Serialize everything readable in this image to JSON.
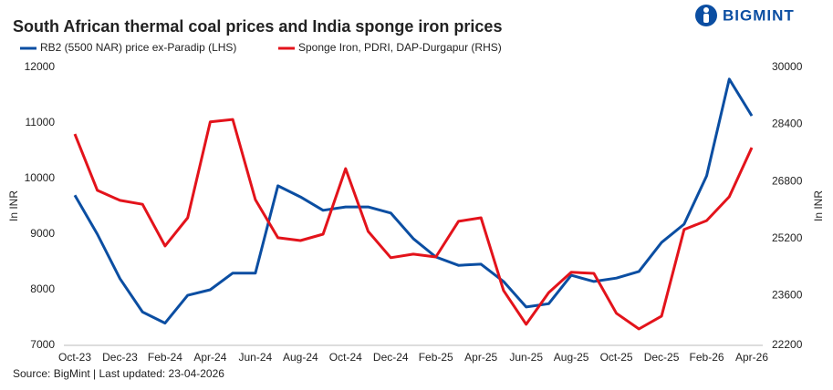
{
  "brand": "BIGMINT",
  "chart_data": {
    "type": "line",
    "title": "South African thermal coal prices and India sponge iron prices",
    "source": "Source: BigMint | Last updated: 23-04-2026",
    "ylabel": "In INR",
    "y2label": "In INR",
    "categories": [
      "Oct-23",
      null,
      "Dec-23",
      null,
      "Feb-24",
      null,
      "Apr-24",
      null,
      "Jun-24",
      null,
      "Aug-24",
      null,
      "Oct-24",
      null,
      "Dec-24",
      null,
      "Feb-25",
      null,
      "Apr-25",
      null,
      "Jun-25",
      null,
      "Aug-25",
      null,
      "Oct-25",
      null,
      "Dec-25",
      null,
      "Feb-26",
      null,
      "Apr-26"
    ],
    "series": [
      {
        "name": "RB2 (5500 NAR) price ex-Paradip (LHS)",
        "color": "#0b4ea2",
        "values": [
          9700,
          9000,
          8200,
          7600,
          7400,
          7900,
          8000,
          8300,
          8300,
          9870,
          9670,
          9430,
          9490,
          9490,
          9380,
          8920,
          8590,
          8440,
          8460,
          8150,
          7690,
          7750,
          8260,
          8150,
          8210,
          8330,
          8850,
          9180,
          10050,
          11790,
          11130
        ]
      },
      {
        "name": "Sponge Iron, PDRI, DAP-Durgapur (RHS)",
        "color": "#e3131b",
        "axis": "y2",
        "values": [
          28130,
          26550,
          26270,
          26160,
          24990,
          25780,
          28470,
          28540,
          26290,
          25220,
          25140,
          25320,
          27160,
          25400,
          24660,
          24760,
          24680,
          25680,
          25780,
          23740,
          22790,
          23680,
          24250,
          24220,
          23100,
          22660,
          23020,
          25450,
          25700,
          26370,
          27750
        ]
      }
    ],
    "ylim": [
      7000,
      12000
    ],
    "yticks": [
      7000,
      8000,
      9000,
      10000,
      11000,
      12000
    ],
    "y2lim": [
      22200,
      30000
    ],
    "y2ticks": [
      22200,
      23600,
      25200,
      26800,
      28400,
      30000
    ],
    "grid": false
  }
}
